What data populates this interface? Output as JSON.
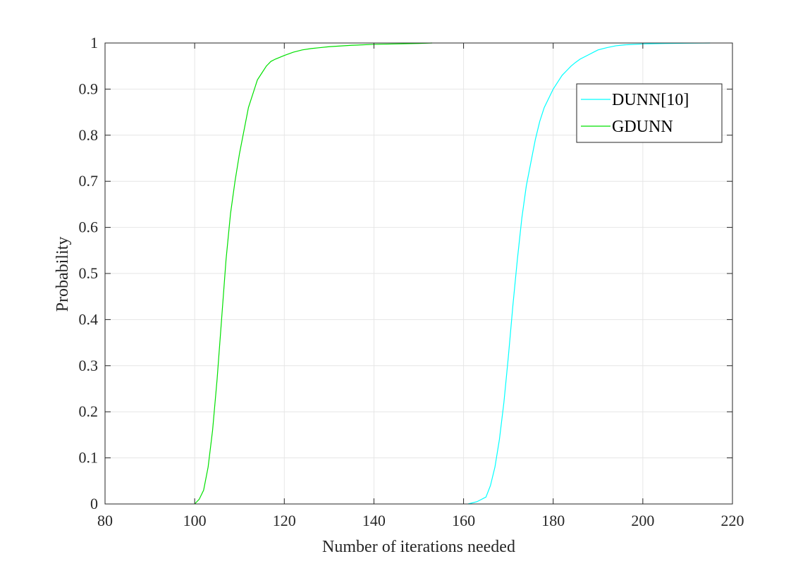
{
  "chart_data": {
    "type": "line",
    "title": "",
    "xlabel": "Number of iterations needed",
    "ylabel": "Probability",
    "xlim": [
      80,
      220
    ],
    "ylim": [
      0,
      1
    ],
    "xticks": [
      80,
      100,
      120,
      140,
      160,
      180,
      200,
      220
    ],
    "yticks": [
      0,
      0.1,
      0.2,
      0.3,
      0.4,
      0.5,
      0.6,
      0.7,
      0.8,
      0.9,
      1
    ],
    "grid": true,
    "legend_position": "top-right",
    "series": [
      {
        "name": "DUNN[10]",
        "color": "#00ffff",
        "x": [
          161,
          163,
          165,
          166,
          167,
          168,
          169,
          170,
          171,
          172,
          173,
          174,
          175,
          176,
          177,
          178,
          179,
          180,
          181,
          182,
          183,
          184,
          185,
          186,
          187,
          188,
          189,
          190,
          192,
          194,
          196,
          200,
          205,
          210,
          215
        ],
        "y": [
          0,
          0.005,
          0.015,
          0.04,
          0.08,
          0.14,
          0.22,
          0.32,
          0.43,
          0.53,
          0.62,
          0.69,
          0.74,
          0.79,
          0.83,
          0.86,
          0.88,
          0.9,
          0.915,
          0.93,
          0.94,
          0.95,
          0.958,
          0.965,
          0.97,
          0.975,
          0.98,
          0.985,
          0.99,
          0.994,
          0.996,
          0.998,
          0.999,
          0.9995,
          1
        ]
      },
      {
        "name": "GDUNN",
        "color": "#00e000",
        "x": [
          100,
          101,
          102,
          103,
          104,
          105,
          106,
          107,
          108,
          109,
          110,
          111,
          112,
          113,
          114,
          115,
          116,
          117,
          118,
          120,
          122,
          124,
          126,
          128,
          130,
          135,
          140,
          145,
          150,
          153
        ],
        "y": [
          0,
          0.01,
          0.03,
          0.08,
          0.16,
          0.27,
          0.4,
          0.53,
          0.63,
          0.7,
          0.76,
          0.81,
          0.86,
          0.89,
          0.92,
          0.935,
          0.95,
          0.96,
          0.965,
          0.973,
          0.98,
          0.985,
          0.988,
          0.99,
          0.992,
          0.995,
          0.997,
          0.998,
          0.999,
          1
        ]
      }
    ]
  }
}
